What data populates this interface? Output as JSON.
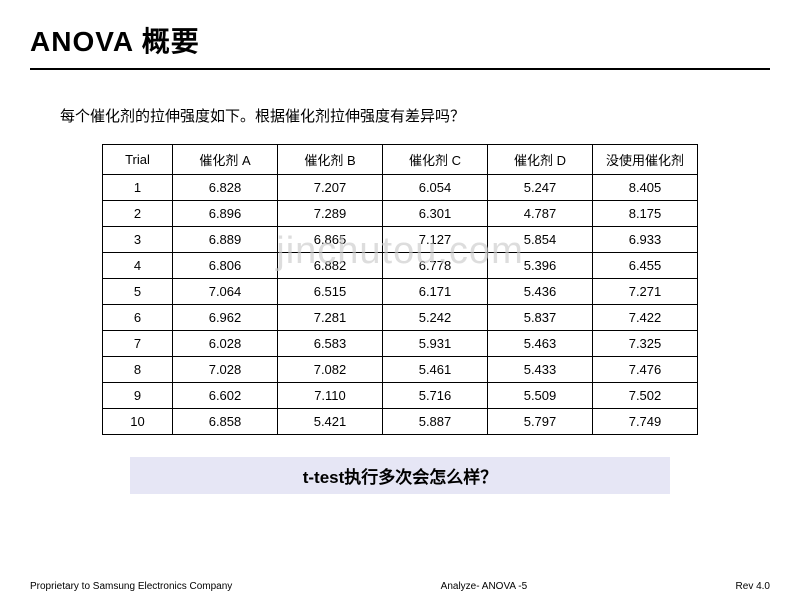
{
  "title": "ANOVA 概要",
  "subtitle": "每个催化剂的拉伸强度如下。根据催化剂拉伸强度有差异吗？",
  "watermark": "jinchutou.com",
  "table": {
    "columns": [
      "Trial",
      "催化剂 A",
      "催化剂 B",
      "催化剂 C",
      "催化剂 D",
      "没使用催化剂"
    ],
    "rows": [
      [
        "1",
        "6.828",
        "7.207",
        "6.054",
        "5.247",
        "8.405"
      ],
      [
        "2",
        "6.896",
        "7.289",
        "6.301",
        "4.787",
        "8.175"
      ],
      [
        "3",
        "6.889",
        "6.865",
        "7.127",
        "5.854",
        "6.933"
      ],
      [
        "4",
        "6.806",
        "6.882",
        "6.778",
        "5.396",
        "6.455"
      ],
      [
        "5",
        "7.064",
        "6.515",
        "6.171",
        "5.436",
        "7.271"
      ],
      [
        "6",
        "6.962",
        "7.281",
        "5.242",
        "5.837",
        "7.422"
      ],
      [
        "7",
        "6.028",
        "6.583",
        "5.931",
        "5.463",
        "7.325"
      ],
      [
        "8",
        "7.028",
        "7.082",
        "5.461",
        "5.433",
        "7.476"
      ],
      [
        "9",
        "6.602",
        "7.110",
        "5.716",
        "5.509",
        "7.502"
      ],
      [
        "10",
        "6.858",
        "5.421",
        "5.887",
        "5.797",
        "7.749"
      ]
    ]
  },
  "highlight": "t-test执行多次会怎么样？",
  "footer": {
    "left": "Proprietary to Samsung Electronics Company",
    "center": "Analyze- ANOVA -5",
    "right": "Rev  4.0"
  },
  "colors": {
    "highlight_bg": "#e6e6f5",
    "watermark_color": "#cccccc",
    "border": "#000000",
    "text": "#000000"
  }
}
